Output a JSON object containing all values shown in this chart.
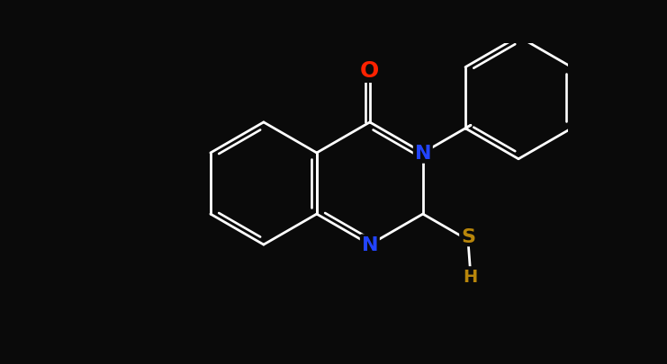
{
  "background_color": "#0a0a0a",
  "bond_color": "#ffffff",
  "atom_colors": {
    "O": "#ff2200",
    "N": "#2244ff",
    "S": "#b8860b",
    "C": "#ffffff"
  },
  "figsize": [
    7.41,
    4.06
  ],
  "dpi": 100,
  "xlim": [
    -4.5,
    4.5
  ],
  "ylim": [
    -2.8,
    2.8
  ],
  "bond_lw": 2.0,
  "font_size": 16
}
